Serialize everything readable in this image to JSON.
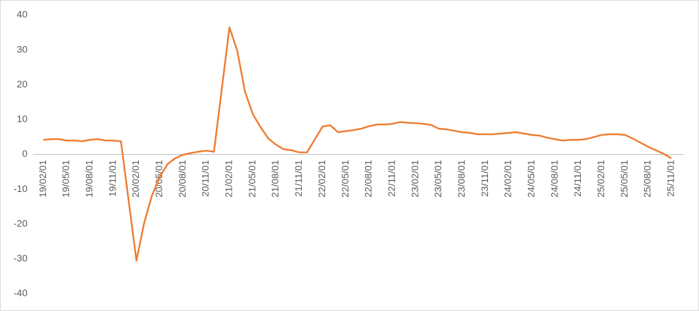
{
  "chart_data": {
    "type": "line",
    "categories": [
      "19/02/01",
      null,
      null,
      "19/05/01",
      null,
      null,
      "19/08/01",
      null,
      null,
      "19/11/01",
      null,
      null,
      "20/02/01",
      null,
      null,
      "20/05/01",
      null,
      null,
      "20/08/01",
      null,
      null,
      "20/11/01",
      null,
      null,
      "21/02/01",
      null,
      null,
      "21/05/01",
      null,
      null,
      "21/08/01",
      null,
      null,
      "21/11/01",
      null,
      null,
      "22/02/01",
      null,
      null,
      "22/05/01",
      null,
      null,
      "22/08/01",
      null,
      null,
      "22/11/01",
      null,
      null,
      "23/02/01",
      null,
      null,
      "23/05/01",
      null,
      null,
      "23/08/01",
      null,
      null,
      "23/11/01",
      null,
      null,
      "24/02/01",
      null,
      null,
      "24/05/01",
      null,
      null,
      "24/08/01",
      null,
      null,
      "24/11/01",
      null,
      null,
      "25/02/01",
      null,
      null,
      "25/05/01",
      null,
      null,
      "25/08/01",
      null,
      null,
      "25/11/01"
    ],
    "series": [
      {
        "color": "#ed7d31",
        "values": [
          4.2,
          4.4,
          4.4,
          4.0,
          4.0,
          3.8,
          4.2,
          4.4,
          4.0,
          4.0,
          3.8,
          -13.3,
          -30.5,
          -19.6,
          -11.8,
          -6.5,
          -2.8,
          -1.1,
          -0.1,
          0.4,
          0.8,
          1.1,
          0.8,
          18.6,
          36.5,
          29.8,
          18.1,
          11.6,
          7.9,
          4.6,
          2.8,
          1.5,
          1.2,
          0.6,
          0.6,
          4.3,
          8.0,
          8.4,
          6.4,
          6.7,
          7.0,
          7.4,
          8.1,
          8.6,
          8.6,
          8.8,
          9.3,
          9.1,
          9.0,
          8.8,
          8.5,
          7.4,
          7.2,
          6.8,
          6.4,
          6.2,
          5.8,
          5.8,
          5.8,
          6.0,
          6.2,
          6.4,
          6.0,
          5.6,
          5.4,
          4.8,
          4.4,
          4.0,
          4.2,
          4.2,
          4.4,
          5.0,
          5.6,
          5.8,
          5.8,
          5.6,
          4.6,
          3.4,
          2.2,
          1.2,
          0.2,
          -1.1
        ]
      }
    ],
    "ylim": [
      -40,
      40
    ],
    "yticks": [
      -40,
      -30,
      -20,
      -10,
      0,
      10,
      20,
      30,
      40
    ],
    "grid": false
  }
}
